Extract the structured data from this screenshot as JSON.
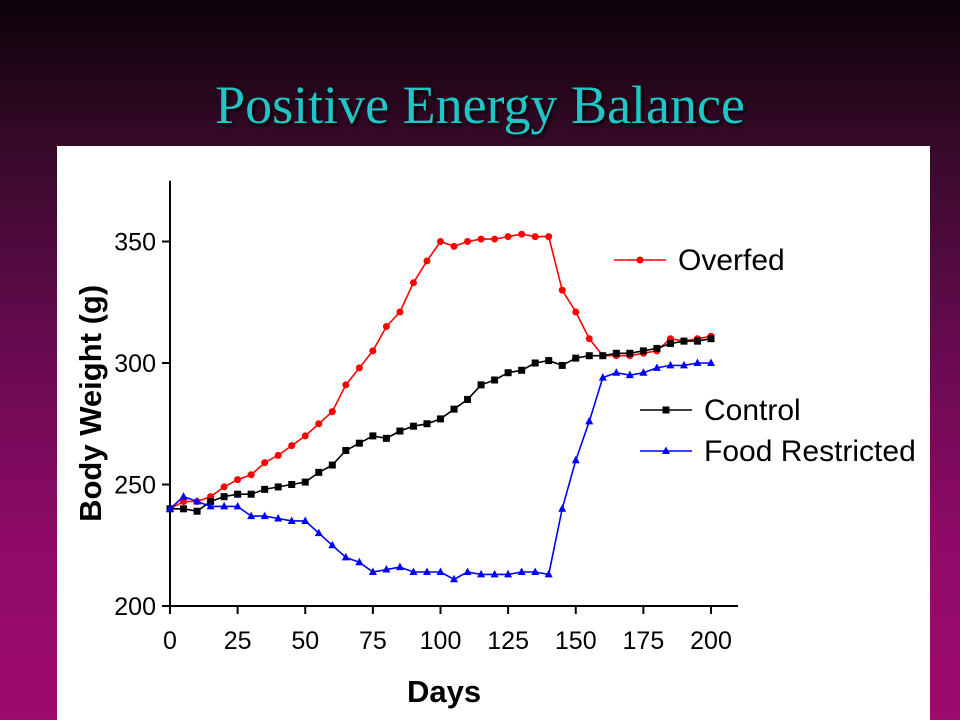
{
  "slide": {
    "title": "Positive Energy Balance"
  },
  "chart_data": {
    "type": "line",
    "title": "",
    "xlabel": "Days",
    "ylabel": "Body Weight (g)",
    "xlim": [
      0,
      210
    ],
    "ylim": [
      200,
      375
    ],
    "xticks": [
      "0",
      "25",
      "50",
      "75",
      "100",
      "125",
      "150",
      "175",
      "200"
    ],
    "yticks": [
      "200",
      "250",
      "300",
      "350"
    ],
    "grid": false,
    "legend": "right",
    "series": [
      {
        "name": "Overfed",
        "color": "#ff0000",
        "marker": "circle",
        "x": [
          0,
          5,
          10,
          15,
          20,
          25,
          30,
          35,
          40,
          45,
          50,
          55,
          60,
          65,
          70,
          75,
          80,
          85,
          90,
          95,
          100,
          105,
          110,
          115,
          120,
          125,
          130,
          135,
          140,
          145,
          150,
          155,
          160,
          165,
          170,
          175,
          180,
          185,
          190,
          195,
          200
        ],
        "y": [
          240,
          243,
          243,
          245,
          249,
          252,
          254,
          259,
          262,
          266,
          270,
          275,
          280,
          291,
          298,
          305,
          315,
          321,
          333,
          342,
          350,
          348,
          350,
          351,
          351,
          352,
          353,
          352,
          352,
          330,
          321,
          310,
          303,
          303,
          303,
          304,
          305,
          310,
          309,
          310,
          311
        ]
      },
      {
        "name": "Control",
        "color": "#000000",
        "marker": "square",
        "x": [
          0,
          5,
          10,
          15,
          20,
          25,
          30,
          35,
          40,
          45,
          50,
          55,
          60,
          65,
          70,
          75,
          80,
          85,
          90,
          95,
          100,
          105,
          110,
          115,
          120,
          125,
          130,
          135,
          140,
          145,
          150,
          155,
          160,
          165,
          170,
          175,
          180,
          185,
          190,
          195,
          200
        ],
        "y": [
          240,
          240,
          239,
          243,
          245,
          246,
          246,
          248,
          249,
          250,
          251,
          255,
          258,
          264,
          267,
          270,
          269,
          272,
          274,
          275,
          277,
          281,
          285,
          291,
          293,
          296,
          297,
          300,
          301,
          299,
          302,
          303,
          303,
          304,
          304,
          305,
          306,
          308,
          309,
          309,
          310
        ]
      },
      {
        "name": "Food Restricted",
        "color": "#0000ff",
        "marker": "triangle",
        "x": [
          0,
          5,
          10,
          15,
          20,
          25,
          30,
          35,
          40,
          45,
          50,
          55,
          60,
          65,
          70,
          75,
          80,
          85,
          90,
          95,
          100,
          105,
          110,
          115,
          120,
          125,
          130,
          135,
          140,
          145,
          150,
          155,
          160,
          165,
          170,
          175,
          180,
          185,
          190,
          195,
          200
        ],
        "y": [
          240,
          245,
          243,
          241,
          241,
          241,
          237,
          237,
          236,
          235,
          235,
          230,
          225,
          220,
          218,
          214,
          215,
          216,
          214,
          214,
          214,
          211,
          214,
          213,
          213,
          213,
          214,
          214,
          213,
          240,
          260,
          276,
          294,
          296,
          295,
          296,
          298,
          299,
          299,
          300,
          300
        ]
      }
    ]
  }
}
